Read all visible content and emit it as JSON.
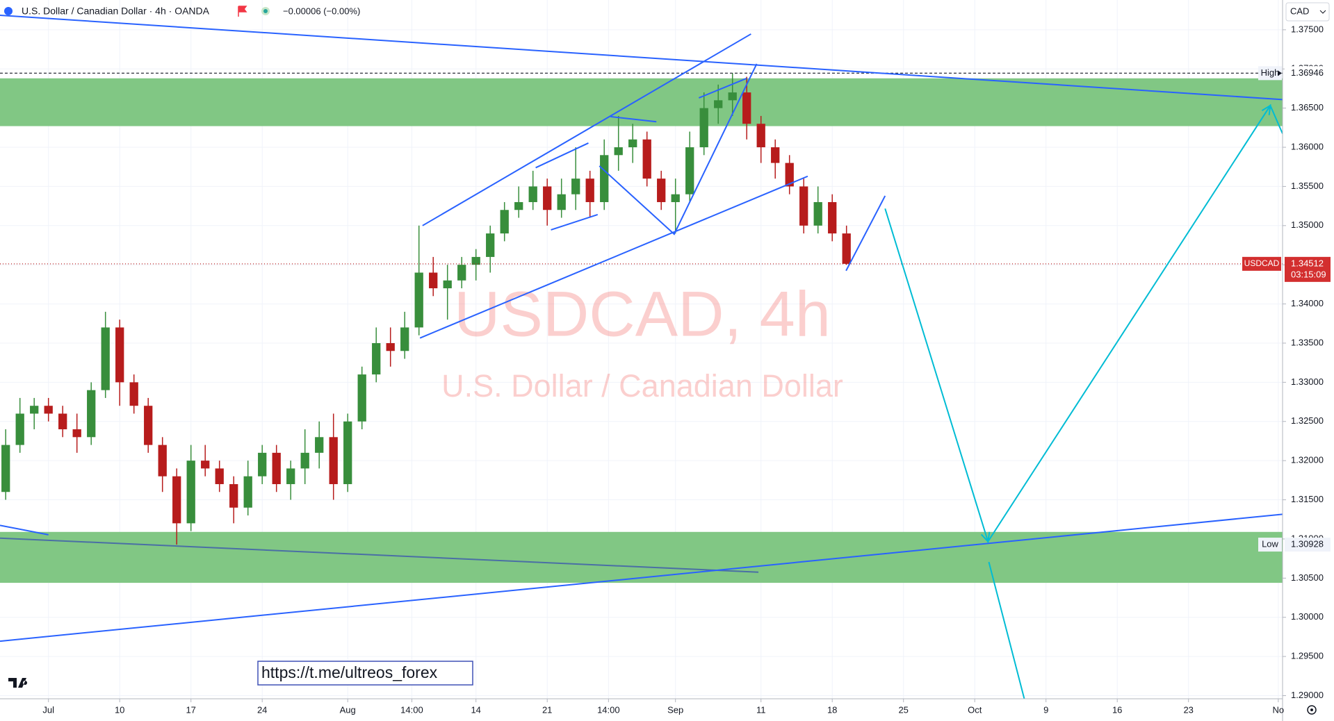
{
  "chart_data": {
    "type": "candlestick",
    "header": {
      "symbol_title": "U.S. Dollar / Canadian Dollar · 4h · OANDA",
      "change": "−0.00006 (−0.00%)",
      "currency": "CAD"
    },
    "watermark": {
      "title": "USDCAD, 4h",
      "subtitle": "U.S. Dollar / Canadian Dollar"
    },
    "link": "https://t.me/ultreos_forex",
    "symbol": "USDCAD",
    "countdown": "03:15:09",
    "high_label": "High",
    "low_label": "Low",
    "up_color": "#388e3c",
    "down_color": "#b71c1c",
    "zone_color": "#81c784",
    "grid": true,
    "x": [
      -3,
      -2,
      -1,
      0,
      1,
      2,
      3,
      4,
      5,
      6,
      7,
      8,
      9,
      10,
      11,
      12,
      13,
      14,
      15,
      16,
      17,
      18,
      19,
      20,
      21,
      22,
      23,
      24,
      25,
      26,
      27,
      28,
      29,
      30,
      31,
      32,
      33,
      34,
      35,
      36,
      37,
      38,
      39,
      40,
      41,
      42,
      43,
      44,
      45,
      46,
      47,
      48,
      49,
      50,
      51,
      52,
      53,
      54,
      55,
      56
    ],
    "open": [
      1.316,
      1.322,
      1.326,
      1.327,
      1.326,
      1.324,
      1.323,
      1.329,
      1.337,
      1.33,
      1.327,
      1.322,
      1.318,
      1.312,
      1.32,
      1.319,
      1.317,
      1.314,
      1.318,
      1.321,
      1.317,
      1.319,
      1.321,
      1.323,
      1.317,
      1.325,
      1.331,
      1.335,
      1.334,
      1.337,
      1.344,
      1.342,
      1.343,
      1.345,
      1.346,
      1.349,
      1.352,
      1.353,
      1.355,
      1.352,
      1.354,
      1.356,
      1.353,
      1.359,
      1.36,
      1.361,
      1.356,
      1.353,
      1.354,
      1.36,
      1.365,
      1.366,
      1.367,
      1.363,
      1.36,
      1.358,
      1.355,
      1.35,
      1.353,
      1.349
    ],
    "high": [
      1.324,
      1.328,
      1.328,
      1.328,
      1.327,
      1.326,
      1.33,
      1.339,
      1.338,
      1.331,
      1.328,
      1.323,
      1.319,
      1.322,
      1.322,
      1.32,
      1.318,
      1.32,
      1.322,
      1.322,
      1.32,
      1.324,
      1.325,
      1.326,
      1.326,
      1.332,
      1.337,
      1.337,
      1.339,
      1.35,
      1.346,
      1.345,
      1.346,
      1.347,
      1.35,
      1.353,
      1.355,
      1.357,
      1.356,
      1.356,
      1.36,
      1.357,
      1.361,
      1.364,
      1.363,
      1.362,
      1.357,
      1.356,
      1.362,
      1.367,
      1.368,
      1.36946,
      1.369,
      1.364,
      1.361,
      1.359,
      1.356,
      1.355,
      1.354,
      1.35
    ],
    "low": [
      1.315,
      1.321,
      1.324,
      1.325,
      1.323,
      1.321,
      1.322,
      1.328,
      1.327,
      1.326,
      1.321,
      1.316,
      1.30928,
      1.311,
      1.318,
      1.316,
      1.312,
      1.313,
      1.317,
      1.316,
      1.315,
      1.317,
      1.319,
      1.315,
      1.316,
      1.324,
      1.33,
      1.332,
      1.333,
      1.336,
      1.341,
      1.338,
      1.342,
      1.343,
      1.344,
      1.348,
      1.351,
      1.352,
      1.35,
      1.351,
      1.352,
      1.351,
      1.352,
      1.357,
      1.358,
      1.355,
      1.352,
      1.349,
      1.353,
      1.359,
      1.363,
      1.364,
      1.361,
      1.358,
      1.356,
      1.354,
      1.349,
      1.349,
      1.348,
      1.345
    ],
    "close": [
      1.322,
      1.326,
      1.327,
      1.326,
      1.324,
      1.323,
      1.329,
      1.337,
      1.33,
      1.327,
      1.322,
      1.318,
      1.312,
      1.32,
      1.319,
      1.317,
      1.314,
      1.318,
      1.321,
      1.317,
      1.319,
      1.321,
      1.323,
      1.317,
      1.325,
      1.331,
      1.335,
      1.334,
      1.337,
      1.344,
      1.342,
      1.343,
      1.345,
      1.346,
      1.349,
      1.352,
      1.353,
      1.355,
      1.352,
      1.354,
      1.356,
      1.353,
      1.359,
      1.36,
      1.361,
      1.356,
      1.353,
      1.354,
      1.36,
      1.365,
      1.366,
      1.367,
      1.363,
      1.36,
      1.358,
      1.355,
      1.35,
      1.353,
      1.349,
      1.34512
    ],
    "xlim": [
      -3.4,
      86.6
    ],
    "ylim": [
      1.2896,
      1.3788
    ],
    "xticks": [
      {
        "value": 0,
        "label": "Jul"
      },
      {
        "value": 5,
        "label": "10"
      },
      {
        "value": 10,
        "label": "17"
      },
      {
        "value": 15,
        "label": "24"
      },
      {
        "value": 21,
        "label": "Aug"
      },
      {
        "value": 25.5,
        "label": "14:00"
      },
      {
        "value": 30,
        "label": "14"
      },
      {
        "value": 35,
        "label": "21"
      },
      {
        "value": 39.3,
        "label": "14:00"
      },
      {
        "value": 44,
        "label": "Sep"
      },
      {
        "value": 50,
        "label": "11"
      },
      {
        "value": 55,
        "label": "18"
      },
      {
        "value": 60,
        "label": "25"
      },
      {
        "value": 65,
        "label": "Oct"
      },
      {
        "value": 70,
        "label": "9"
      },
      {
        "value": 75,
        "label": "16"
      },
      {
        "value": 80,
        "label": "23"
      },
      {
        "value": 86.3,
        "label": "No"
      }
    ],
    "yticks": [
      {
        "value": 1.29,
        "label": "1.29000"
      },
      {
        "value": 1.295,
        "label": "1.29500"
      },
      {
        "value": 1.3,
        "label": "1.30000"
      },
      {
        "value": 1.305,
        "label": "1.30500"
      },
      {
        "value": 1.31,
        "label": "1.31000"
      },
      {
        "value": 1.315,
        "label": "1.31500"
      },
      {
        "value": 1.32,
        "label": "1.32000"
      },
      {
        "value": 1.325,
        "label": "1.32500"
      },
      {
        "value": 1.33,
        "label": "1.33000"
      },
      {
        "value": 1.335,
        "label": "1.33500"
      },
      {
        "value": 1.34,
        "label": "1.34000"
      },
      {
        "value": 1.345,
        "label": "1.34500"
      },
      {
        "value": 1.35,
        "label": "1.35000"
      },
      {
        "value": 1.355,
        "label": "1.35500"
      },
      {
        "value": 1.36,
        "label": "1.36000"
      },
      {
        "value": 1.365,
        "label": "1.36500"
      },
      {
        "value": 1.37,
        "label": "1.37000"
      },
      {
        "value": 1.375,
        "label": "1.37500"
      }
    ],
    "zones": [
      [
        1.3627,
        1.3688
      ],
      [
        1.3044,
        1.3109
      ]
    ],
    "trendlines": [
      {
        "color": "#2962ff",
        "points": [
          [
            -3.4,
            1.37685
          ],
          [
            86.6,
            1.36609
          ]
        ]
      },
      {
        "color": "#2962ff",
        "points": [
          [
            26.25,
            1.35
          ],
          [
            49.3,
            1.37446
          ]
        ]
      },
      {
        "color": "#2962ff",
        "points": [
          [
            26.07,
            1.33565
          ],
          [
            53.28,
            1.3563
          ]
        ]
      },
      {
        "color": "#2962ff",
        "points": [
          [
            39.44,
            1.36391
          ],
          [
            42.66,
            1.36326
          ]
        ]
      },
      {
        "color": "#2962ff",
        "points": [
          [
            34.19,
            1.35739
          ],
          [
            37.89,
            1.36054
          ]
        ]
      },
      {
        "color": "#2962ff",
        "points": [
          [
            35.26,
            1.34946
          ],
          [
            38.54,
            1.35141
          ]
        ]
      },
      {
        "color": "#2962ff",
        "points": [
          [
            38.66,
            1.35761
          ],
          [
            43.91,
            1.34891
          ],
          [
            49.7,
            1.37065
          ]
        ]
      },
      {
        "color": "#2962ff",
        "points": [
          [
            45.64,
            1.3663
          ],
          [
            48.99,
            1.3688
          ]
        ]
      },
      {
        "color": "#2962ff",
        "points": [
          [
            55.97,
            1.34424
          ],
          [
            58.71,
            1.3538
          ]
        ]
      },
      {
        "color": "#2962ff",
        "points": [
          [
            -3.4,
            1.31174
          ],
          [
            0,
            1.31054
          ]
        ]
      },
      {
        "color": "#4a6fa5",
        "points": [
          [
            -3.4,
            1.31011
          ],
          [
            49.82,
            1.30576
          ]
        ]
      },
      {
        "color": "#2962ff",
        "points": [
          [
            -3.4,
            1.29695
          ],
          [
            86.6,
            1.31315
          ]
        ]
      },
      {
        "color": "#00bcd4",
        "points": [
          [
            58.71,
            1.35217
          ],
          [
            65.93,
            1.30967
          ],
          [
            85.74,
            1.36533
          ],
          [
            86.6,
            1.36174
          ]
        ]
      },
      {
        "color": "#00bcd4",
        "points": [
          [
            65.99,
            1.30706
          ],
          [
            68.9,
            1.28663
          ]
        ]
      }
    ]
  }
}
